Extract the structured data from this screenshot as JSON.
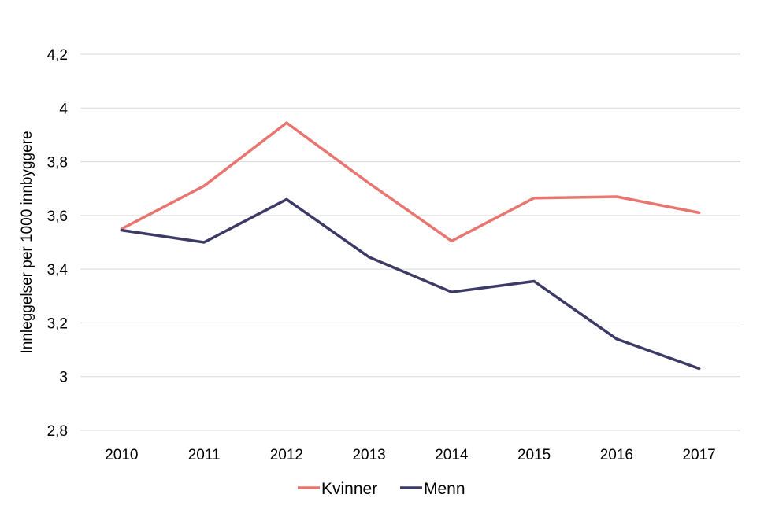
{
  "chart_data": {
    "type": "line",
    "title": "",
    "xlabel": "",
    "ylabel": "Innleggelser per 1000 innbyggere",
    "categories": [
      "2010",
      "2011",
      "2012",
      "2013",
      "2014",
      "2015",
      "2016",
      "2017"
    ],
    "series": [
      {
        "name": "Kvinner",
        "color": "#e8756f",
        "values": [
          3.55,
          3.71,
          3.945,
          3.72,
          3.505,
          3.665,
          3.67,
          3.61
        ]
      },
      {
        "name": "Menn",
        "color": "#3b3b66",
        "values": [
          3.545,
          3.5,
          3.66,
          3.445,
          3.315,
          3.355,
          3.14,
          3.03
        ]
      }
    ],
    "ylim": [
      2.8,
      4.2
    ],
    "yticks": [
      "2,8",
      "3",
      "3,2",
      "3,4",
      "3,6",
      "3,8",
      "4",
      "4,2"
    ],
    "grid": true,
    "gridColor": "#d9d9d9",
    "legend": "bottom-center"
  }
}
